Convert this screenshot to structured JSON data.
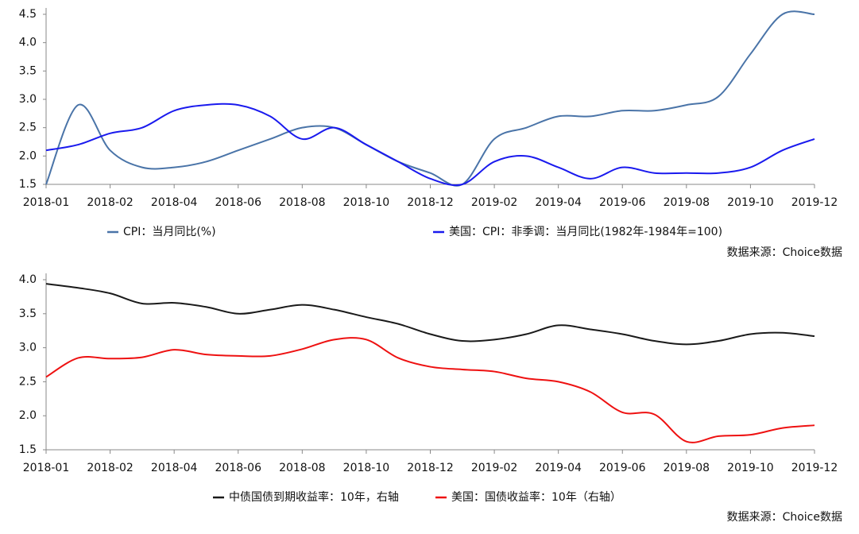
{
  "chart_data": [
    {
      "type": "line",
      "categories": [
        "2018-01",
        null,
        "2018-02",
        null,
        "2018-04",
        null,
        "2018-06",
        null,
        "2018-08",
        null,
        "2018-10",
        null,
        "2018-12",
        null,
        "2019-02",
        null,
        "2019-04",
        null,
        "2019-06",
        null,
        "2019-08",
        null,
        "2019-10",
        null,
        "2019-12"
      ],
      "ylim": [
        1.5,
        4.5
      ],
      "yticks": [
        {
          "value": 1.5,
          "label": "1.5"
        },
        {
          "value": 2,
          "label": "2.0"
        },
        {
          "value": 2.5,
          "label": "2.5"
        },
        {
          "value": 3,
          "label": "3.0"
        },
        {
          "value": 3.5,
          "label": "3.5"
        },
        {
          "value": 4,
          "label": "4.0"
        },
        {
          "value": 4.5,
          "label": "4.5"
        }
      ],
      "series": [
        {
          "name": "CPI：当月同比(%)",
          "color": "#4a74a8",
          "values": [
            1.5,
            2.9,
            2.1,
            1.8,
            1.8,
            1.9,
            2.1,
            2.3,
            2.5,
            2.5,
            2.2,
            1.9,
            1.7,
            1.5,
            2.3,
            2.5,
            2.7,
            2.7,
            2.8,
            2.8,
            2.9,
            3.05,
            3.8,
            4.5,
            4.5
          ]
        },
        {
          "name": "美国：CPI：非季调：当月同比(1982年-1984年=100)",
          "color": "#1a1aee",
          "values": [
            2.1,
            2.2,
            2.4,
            2.5,
            2.8,
            2.9,
            2.9,
            2.7,
            2.3,
            2.5,
            2.2,
            1.9,
            1.6,
            1.5,
            1.9,
            2.0,
            1.8,
            1.6,
            1.8,
            1.7,
            1.7,
            1.7,
            1.8,
            2.1,
            2.3
          ]
        }
      ],
      "source": "数据来源：Choice数据"
    },
    {
      "type": "line",
      "categories": [
        "2018-01",
        null,
        "2018-02",
        null,
        "2018-04",
        null,
        "2018-06",
        null,
        "2018-08",
        null,
        "2018-10",
        null,
        "2018-12",
        null,
        "2019-02",
        null,
        "2019-04",
        null,
        "2019-06",
        null,
        "2019-08",
        null,
        "2019-10",
        null,
        "2019-12"
      ],
      "ylim": [
        1.5,
        4.0
      ],
      "yticks": [
        {
          "value": 1.5,
          "label": "1.5"
        },
        {
          "value": 2,
          "label": "2.0"
        },
        {
          "value": 2.5,
          "label": "2.5"
        },
        {
          "value": 3,
          "label": "3.0"
        },
        {
          "value": 3.5,
          "label": "3.5"
        },
        {
          "value": 4,
          "label": "4.0"
        }
      ],
      "series": [
        {
          "name": "中债国债到期收益率：10年，右轴",
          "color": "#1a1a1a",
          "values": [
            3.94,
            3.88,
            3.8,
            3.65,
            3.66,
            3.6,
            3.5,
            3.56,
            3.63,
            3.56,
            3.45,
            3.35,
            3.2,
            3.1,
            3.12,
            3.2,
            3.33,
            3.27,
            3.2,
            3.1,
            3.05,
            3.1,
            3.2,
            3.22,
            3.17
          ]
        },
        {
          "name": "美国：国债收益率：10年（右轴）",
          "color": "#ee1111",
          "values": [
            2.57,
            2.85,
            2.84,
            2.86,
            2.97,
            2.9,
            2.88,
            2.88,
            2.98,
            3.12,
            3.12,
            2.85,
            2.72,
            2.68,
            2.65,
            2.55,
            2.5,
            2.35,
            2.05,
            2.02,
            1.62,
            1.7,
            1.72,
            1.82,
            1.86
          ]
        }
      ],
      "source": "数据来源：Choice数据"
    }
  ]
}
